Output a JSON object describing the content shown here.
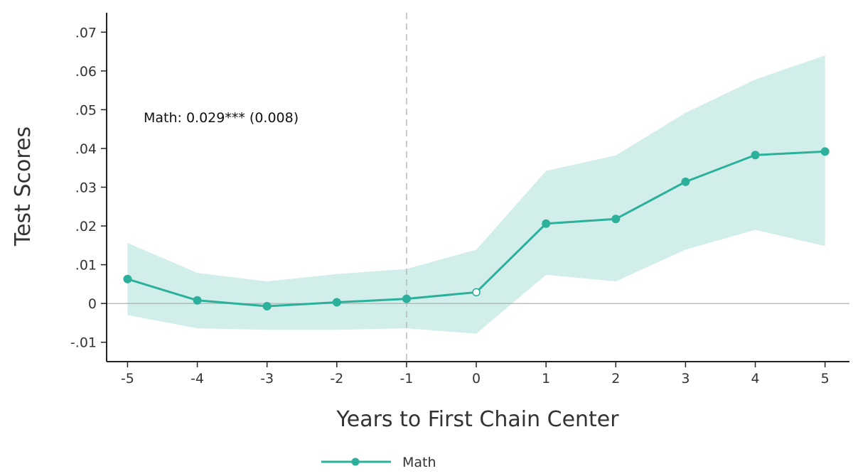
{
  "colors": {
    "line": "#2bb09c",
    "band": "#d2eeea",
    "axis": "#222222",
    "zero_line": "#aaaaaa",
    "event_line": "#b8b8b8",
    "open_marker_fill": "#ffffff"
  },
  "chart_data": {
    "type": "line",
    "xlabel": "Years to First Chain Center",
    "ylabel": "Test Scores",
    "x": [
      -5,
      -4,
      -3,
      -2,
      -1,
      0,
      1,
      2,
      3,
      4,
      5
    ],
    "xlim": [
      -5.3,
      5.35
    ],
    "ylim": [
      -0.015,
      0.075
    ],
    "x_ticks": [
      -5,
      -4,
      -3,
      -2,
      -1,
      0,
      1,
      2,
      3,
      4,
      5
    ],
    "x_tick_labels": [
      "-5",
      "-4",
      "-3",
      "-2",
      "-1",
      "0",
      "1",
      "2",
      "3",
      "4",
      "5"
    ],
    "y_ticks": [
      -0.01,
      0,
      0.01,
      0.02,
      0.03,
      0.04,
      0.05,
      0.06,
      0.07
    ],
    "y_tick_labels": [
      "-.01",
      "0",
      ".01",
      ".02",
      ".03",
      ".04",
      ".05",
      ".06",
      ".07"
    ],
    "series": [
      {
        "name": "Math",
        "values": [
          0.0063,
          0.0008,
          -0.0007,
          0.0003,
          0.0012,
          0.0029,
          0.0206,
          0.0218,
          0.0314,
          0.0383,
          0.0392
        ],
        "ci_lower": [
          -0.003,
          -0.0064,
          -0.0068,
          -0.0068,
          -0.0064,
          -0.0078,
          0.0074,
          0.0057,
          0.0139,
          0.019,
          0.0148
        ],
        "ci_upper": [
          0.0156,
          0.0079,
          0.0057,
          0.0076,
          0.0089,
          0.0139,
          0.0342,
          0.0382,
          0.0492,
          0.0578,
          0.064
        ],
        "open_marker_x": [
          0
        ]
      }
    ],
    "reference_lines": {
      "vertical_x": -1,
      "horizontal_y": 0
    },
    "annotations": [
      {
        "text": "Math: 0.029*** (0.008)"
      }
    ],
    "legend": {
      "position": "bottom-center",
      "entries": [
        "Math"
      ]
    },
    "grid": false
  }
}
